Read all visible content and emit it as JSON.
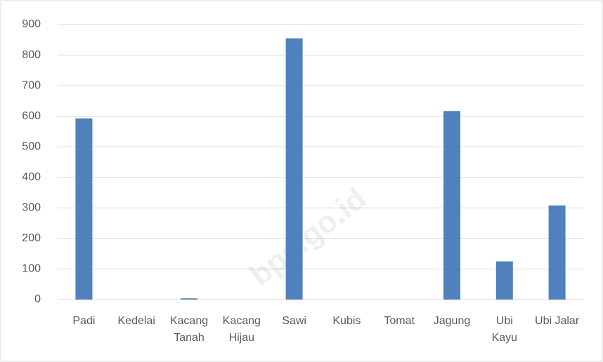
{
  "chart_data": {
    "type": "bar",
    "categories": [
      "Padi",
      "Kedelai",
      "Kacang Tanah",
      "Kacang Hijau",
      "Sawi",
      "Kubis",
      "Tomat",
      "Jagung",
      "Ubi Kayu",
      "Ubi Jalar"
    ],
    "values": [
      593,
      0,
      4,
      0,
      855,
      0,
      0,
      617,
      125,
      308
    ],
    "color": "#4f81bd",
    "ylim": [
      0,
      900
    ],
    "yticks": [
      0,
      100,
      200,
      300,
      400,
      500,
      600,
      700,
      800,
      900
    ],
    "grid": true,
    "watermark": "bps.go.id"
  }
}
